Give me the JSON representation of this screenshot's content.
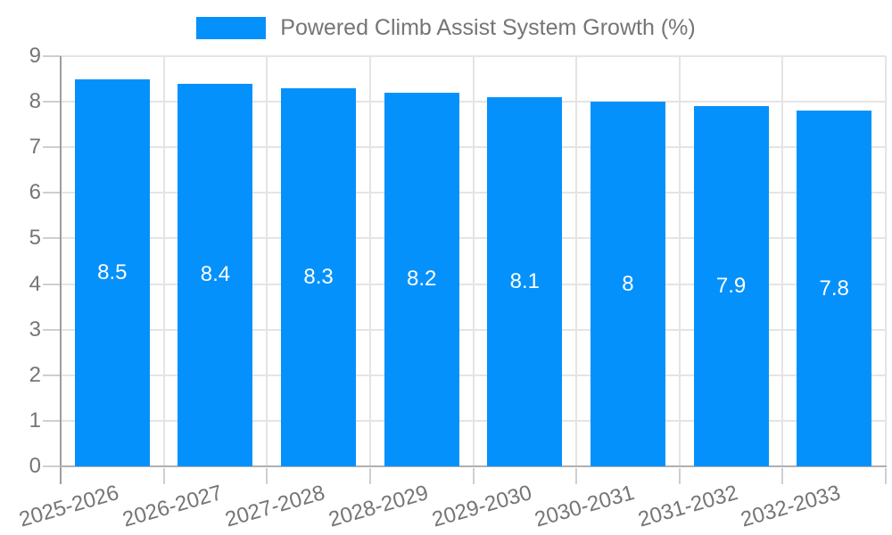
{
  "chart_data": {
    "type": "bar",
    "title": "Powered Climb Assist System Growth (%)",
    "categories": [
      "2025-2026",
      "2026-2027",
      "2027-2028",
      "2028-2029",
      "2029-2030",
      "2030-2031",
      "2031-2032",
      "2032-2033"
    ],
    "values": [
      8.5,
      8.4,
      8.3,
      8.2,
      8.1,
      8,
      7.9,
      7.8
    ],
    "data_labels": [
      "8.5",
      "8.4",
      "8.3",
      "8.2",
      "8.1",
      "8",
      "7.9",
      "7.8"
    ],
    "xlabel": "",
    "ylabel": "",
    "ylim": [
      0,
      9
    ],
    "y_ticks": [
      "0",
      "1",
      "2",
      "3",
      "4",
      "5",
      "6",
      "7",
      "8",
      "9"
    ],
    "grid": true,
    "legend": {
      "position": "top",
      "label": "Powered Climb Assist System Growth (%)"
    },
    "colors": {
      "bar": "#0591FB",
      "bar_label_text": "#FFFFFF",
      "axis_text": "#757575",
      "legend_text": "#757575",
      "gridline": "#E4E4E4",
      "axis_line": "#9E9E9E",
      "baseline": "#B0B0B0",
      "tick": "#CFCFCF",
      "background": "#FFFFFF"
    }
  }
}
